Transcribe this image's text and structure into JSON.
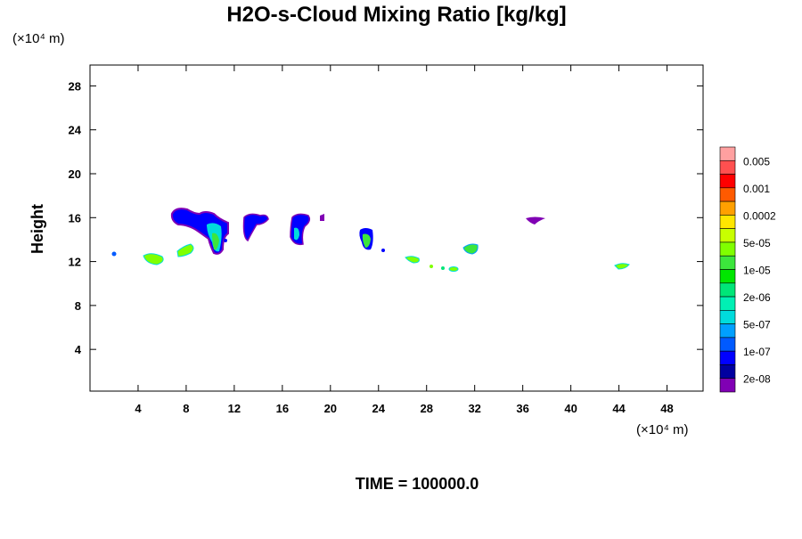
{
  "chart_data": {
    "type": "contour",
    "title": "H2O-s-Cloud Mixing Ratio [kg/kg]",
    "x_unit_label": "(×10⁴ m)",
    "y_unit_label": "(×10⁴ m)",
    "y_label": "Height",
    "footer": "TIME = 100000.0",
    "xlim": [
      0,
      51
    ],
    "xticks": [
      4,
      8,
      12,
      16,
      20,
      24,
      28,
      32,
      36,
      40,
      44,
      48
    ],
    "ylim": [
      0.2,
      29.9
    ],
    "yticks": [
      4,
      8,
      12,
      16,
      20,
      24,
      28
    ],
    "colorbar": {
      "colors": [
        "#ffa0a0",
        "#ff5050",
        "#ff0000",
        "#ff5a00",
        "#ffa000",
        "#ffe600",
        "#c8ff00",
        "#80ff00",
        "#3ce63c",
        "#00e600",
        "#00e678",
        "#00f0b4",
        "#00dcdc",
        "#00a0ff",
        "#005aff",
        "#0000ff",
        "#0000a0",
        "#8000b4"
      ],
      "labels": [
        0.005,
        0.001,
        0.0002,
        {
          "value": 5e-05,
          "label": "5e-05"
        },
        {
          "value": 1e-05,
          "label": "1e-05"
        },
        {
          "value": 2e-06,
          "label": "2e-06"
        },
        {
          "value": 5e-07,
          "label": "5e-07"
        },
        {
          "value": 1e-07,
          "label": "1e-07"
        },
        {
          "value": 2e-08,
          "label": "2e-08"
        }
      ]
    }
  }
}
